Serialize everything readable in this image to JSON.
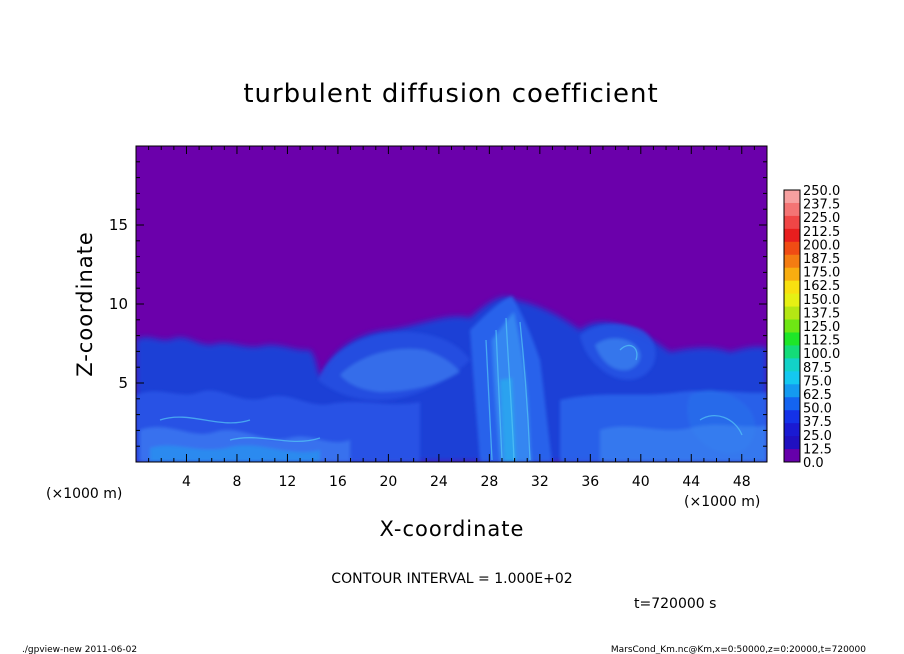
{
  "chart_data": {
    "type": "heatmap",
    "title": "turbulent diffusion coefficient",
    "xlabel": "X-coordinate",
    "ylabel": "Z-coordinate",
    "x_unit": "(×1000 m)",
    "y_unit": "(×1000 m)",
    "xlim": [
      0,
      50
    ],
    "ylim": [
      0,
      20
    ],
    "x_ticks": [
      "4",
      "8",
      "12",
      "16",
      "20",
      "24",
      "28",
      "32",
      "36",
      "40",
      "44",
      "48"
    ],
    "y_ticks": [
      "5",
      "10",
      "15"
    ],
    "x_tick_values": [
      4,
      8,
      12,
      16,
      20,
      24,
      28,
      32,
      36,
      40,
      44,
      48
    ],
    "y_tick_values": [
      5,
      10,
      15
    ],
    "colorbar": {
      "labels": [
        "250.0",
        "237.5",
        "225.0",
        "212.5",
        "200.0",
        "187.5",
        "175.0",
        "162.5",
        "150.0",
        "137.5",
        "125.0",
        "112.5",
        "100.0",
        "87.5",
        "75.0",
        "62.5",
        "50.0",
        "37.5",
        "25.0",
        "12.5",
        "0.0"
      ],
      "colors": [
        "#f7a0a0",
        "#f47474",
        "#f04646",
        "#e81e1e",
        "#f04c14",
        "#f47c12",
        "#f8ad10",
        "#f8e010",
        "#e6f014",
        "#b4e614",
        "#6ee614",
        "#1ee628",
        "#14dc78",
        "#12d2c8",
        "#14c8f0",
        "#149af0",
        "#1464f0",
        "#1432e8",
        "#1a1ad2",
        "#2010c0",
        "#6600aa"
      ]
    },
    "background_value": "0.0",
    "background_color": "#6b00ab",
    "contour_interval": "CONTOUR INTERVAL = 1.000E+02",
    "time_label": "t=720000 s"
  },
  "footer": {
    "left": "./gpview-new  2011-06-02",
    "right": "MarsCond_Km.nc@Km,x=0:50000,z=0:20000,t=720000"
  }
}
